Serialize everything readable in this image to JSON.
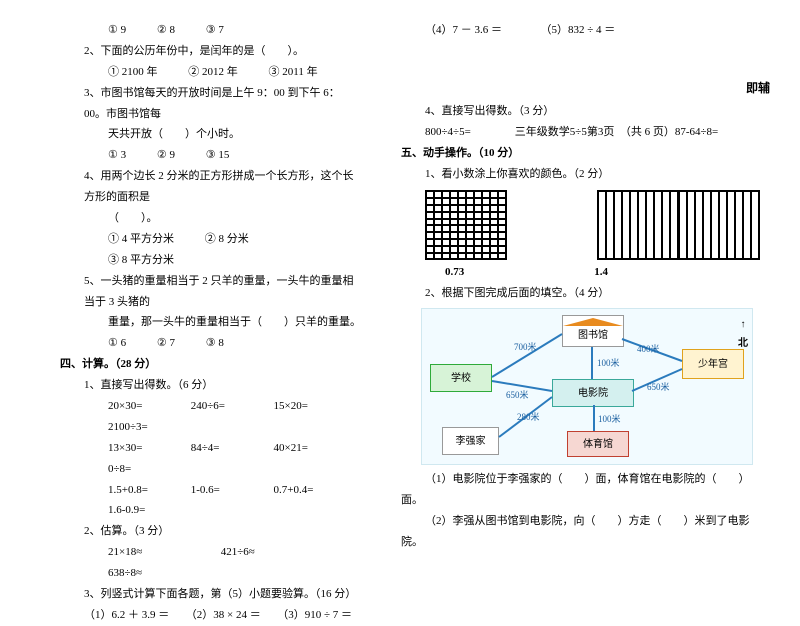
{
  "left": {
    "q1": {
      "a": "① 9",
      "b": "② 8",
      "c": "③ 7"
    },
    "q2": {
      "stem": "2、下面的公历年份中，是闰年的是（　　）。",
      "a": "① 2100 年",
      "b": "② 2012 年",
      "c": "③ 2011 年"
    },
    "q3": {
      "stem1": "3、市图书馆每天的开放时间是上午 9：00 到下午 6：00。市图书馆每",
      "stem2": "天共开放（　　）个小时。",
      "a": "① 3",
      "b": "② 9",
      "c": "③ 15"
    },
    "q4": {
      "stem1": "4、用两个边长 2 分米的正方形拼成一个长方形，这个长方形的面积是",
      "stem2": "（　　）。",
      "a": "① 4 平方分米",
      "b": "② 8 分米",
      "c": "③ 8 平方分米"
    },
    "q5": {
      "stem1": "5、一头猪的重量相当于 2 只羊的重量，一头牛的重量相当于 3 头猪的",
      "stem2": "重量，那一头牛的重量相当于（　　）只羊的重量。",
      "a": "① 6",
      "b": "② 7",
      "c": "③ 8"
    },
    "sec4": "四、计算。（28 分）",
    "s4_1": "1、直接写出得数。（6 分）",
    "calc": {
      "r1": [
        "20×30=",
        "240÷6=",
        "15×20=",
        "2100÷3="
      ],
      "r2": [
        "13×30=",
        "84÷4=",
        "40×21=",
        "0÷8="
      ],
      "r3": [
        "1.5+0.8=",
        "1-0.6=",
        "0.7+0.4=",
        "1.6-0.9="
      ]
    },
    "s4_2": "2、估算。（3 分）",
    "est": [
      "21×18≈",
      "421÷6≈",
      "638÷8≈"
    ],
    "s4_3": "3、列竖式计算下面各题，第（5）小题要验算。（16 分）",
    "s4_3row": "（1）6.2 ＋ 3.9 ＝　　（2）38 × 24 ＝　　（3）910 ÷ 7 ＝"
  },
  "right": {
    "topcalc": "（4）7 － 3.6 ＝　　　　（5）832 ÷ 4 ＝",
    "side": "即辅",
    "s_4": "4、直接写出得数。（3 分）",
    "s_4row": "800÷4÷5=　　　　三年级数学5÷5第3页　（共 6 页）87-64÷8=",
    "sec5": "五、动手操作。（10 分）",
    "s5_1": "1、看小数涂上你喜欢的颜色。（2 分）",
    "g_labels": [
      "0.73",
      "1.4"
    ],
    "s5_2": "2、根据下图完成后面的填空。（4 分）",
    "map": {
      "north": "北",
      "places": {
        "school": "学校",
        "library": "图书馆",
        "youth": "少年宫",
        "liqiang": "李强家",
        "cinema": "电影院",
        "stadium": "体育馆"
      },
      "dist": {
        "d700": "700米",
        "d650a": "650米",
        "d650b": "650米",
        "d280": "280米",
        "d400": "400米",
        "d100a": "100米",
        "d100b": "100米"
      }
    },
    "q_a": "（1）电影院位于李强家的（　　）面，体育馆在电影院的（　　）",
    "q_a2": "面。",
    "q_b": "（2）李强从图书馆到电影院，向（　　）方走（　　）米到了电影",
    "q_b2": "院。"
  },
  "colors": {
    "blue": "#2b7bbd",
    "orange": "#e88b1f",
    "green": "#2faa3a",
    "teal": "#3aa89a",
    "gold": "#e0a21d",
    "red": "#c04030"
  }
}
